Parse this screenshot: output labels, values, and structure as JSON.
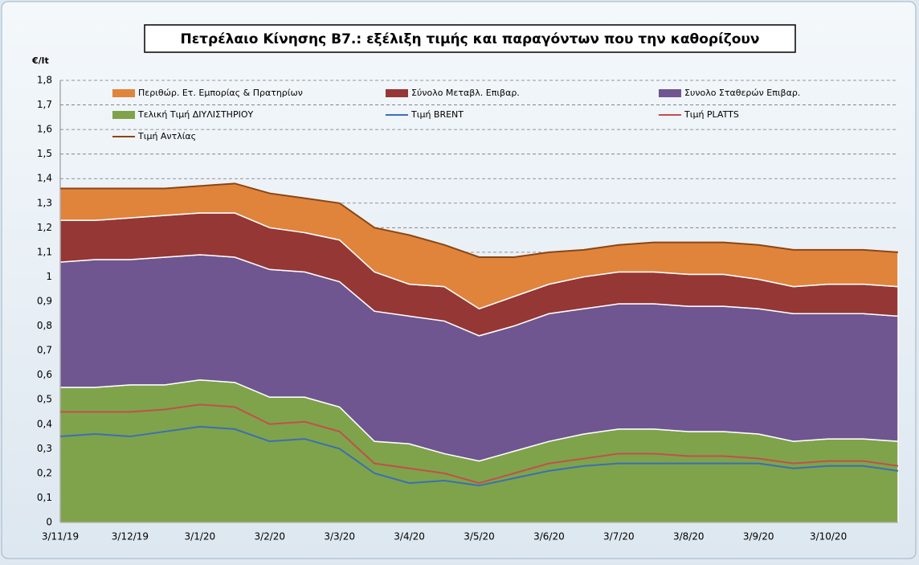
{
  "chart_data": {
    "type": "stacked_area_line",
    "title": "Πετρέλαιο Κίνησης Β7.: εξέλιξη τιμής και παραγόντων που την καθορίζουν",
    "y_label": "€/lt",
    "categories": [
      "3/11/19",
      null,
      "3/12/19",
      null,
      "3/1/20",
      null,
      "3/2/20",
      null,
      "3/3/20",
      null,
      "3/4/20",
      null,
      "3/5/20",
      null,
      "3/6/20",
      null,
      "3/7/20",
      null,
      "3/8/20",
      null,
      "3/9/20",
      null,
      "3/10/20",
      null,
      null
    ],
    "series": [
      {
        "name": "Τελική Τιμή ΔΙΥΛΙΣΤΗΡΙΟΥ",
        "kind": "area",
        "color": "#7fa34a",
        "values": [
          0.55,
          0.55,
          0.56,
          0.56,
          0.58,
          0.57,
          0.51,
          0.51,
          0.47,
          0.33,
          0.32,
          0.28,
          0.25,
          0.29,
          0.33,
          0.36,
          0.38,
          0.38,
          0.37,
          0.37,
          0.36,
          0.33,
          0.34,
          0.34,
          0.33
        ]
      },
      {
        "name": "Συνολο Σταθερών Επιβαρ.",
        "kind": "area",
        "color": "#6f5690",
        "values": [
          0.51,
          0.52,
          0.51,
          0.52,
          0.51,
          0.51,
          0.52,
          0.51,
          0.51,
          0.53,
          0.52,
          0.54,
          0.51,
          0.51,
          0.52,
          0.51,
          0.51,
          0.51,
          0.51,
          0.51,
          0.51,
          0.52,
          0.51,
          0.51,
          0.51
        ]
      },
      {
        "name": "Σύνολο Μεταβλ. Επιβαρ.",
        "kind": "area",
        "color": "#953735",
        "values": [
          0.17,
          0.16,
          0.17,
          0.17,
          0.17,
          0.18,
          0.17,
          0.16,
          0.17,
          0.16,
          0.13,
          0.14,
          0.11,
          0.12,
          0.12,
          0.13,
          0.13,
          0.13,
          0.13,
          0.13,
          0.12,
          0.11,
          0.12,
          0.12,
          0.12
        ]
      },
      {
        "name": "Περιθώρ. Ετ. Εμπορίας & Πρατηρίων",
        "kind": "area",
        "color": "#e0843c",
        "values": [
          0.13,
          0.13,
          0.12,
          0.11,
          0.11,
          0.12,
          0.14,
          0.14,
          0.15,
          0.18,
          0.2,
          0.17,
          0.21,
          0.16,
          0.13,
          0.11,
          0.11,
          0.12,
          0.13,
          0.13,
          0.14,
          0.15,
          0.14,
          0.14,
          0.14
        ]
      },
      {
        "name": "Τιμή BRENT",
        "kind": "line",
        "color": "#3a6fb5",
        "values": [
          0.35,
          0.36,
          0.35,
          0.37,
          0.39,
          0.38,
          0.33,
          0.34,
          0.3,
          0.2,
          0.16,
          0.17,
          0.15,
          0.18,
          0.21,
          0.23,
          0.24,
          0.24,
          0.24,
          0.24,
          0.24,
          0.22,
          0.23,
          0.23,
          0.21
        ]
      },
      {
        "name": "Τιμή PLATTS",
        "kind": "line",
        "color": "#c0504d",
        "values": [
          0.45,
          0.45,
          0.45,
          0.46,
          0.48,
          0.47,
          0.4,
          0.41,
          0.37,
          0.24,
          0.22,
          0.2,
          0.16,
          0.2,
          0.24,
          0.26,
          0.28,
          0.28,
          0.27,
          0.27,
          0.26,
          0.24,
          0.25,
          0.25,
          0.23
        ]
      },
      {
        "name": "Τιμή Αντλίας",
        "kind": "line",
        "color": "#8b4513",
        "values": [
          1.36,
          1.36,
          1.36,
          1.36,
          1.37,
          1.38,
          1.34,
          1.32,
          1.3,
          1.2,
          1.17,
          1.13,
          1.08,
          1.08,
          1.1,
          1.11,
          1.13,
          1.14,
          1.14,
          1.14,
          1.13,
          1.11,
          1.11,
          1.11,
          1.1
        ]
      }
    ],
    "ylim": [
      0,
      1.8
    ],
    "yticks": [
      0,
      {
        "value": 0.1,
        "label": "0,1"
      },
      {
        "value": 0.2,
        "label": "0,2"
      },
      {
        "value": 0.3,
        "label": "0,3"
      },
      {
        "value": 0.4,
        "label": "0,4"
      },
      {
        "value": 0.5,
        "label": "0,5"
      },
      {
        "value": 0.6,
        "label": "0,6"
      },
      {
        "value": 0.7,
        "label": "0,7"
      },
      {
        "value": 0.8,
        "label": "0,8"
      },
      {
        "value": 0.9,
        "label": "0,9"
      },
      1,
      {
        "value": 1.1,
        "label": "1,1"
      },
      {
        "value": 1.2,
        "label": "1,2"
      },
      {
        "value": 1.3,
        "label": "1,3"
      },
      {
        "value": 1.4,
        "label": "1,4"
      },
      {
        "value": 1.5,
        "label": "1,5"
      },
      {
        "value": 1.6,
        "label": "1,6"
      },
      {
        "value": 1.7,
        "label": "1,7"
      },
      {
        "value": 1.8,
        "label": "1,8"
      }
    ],
    "grid": true
  }
}
